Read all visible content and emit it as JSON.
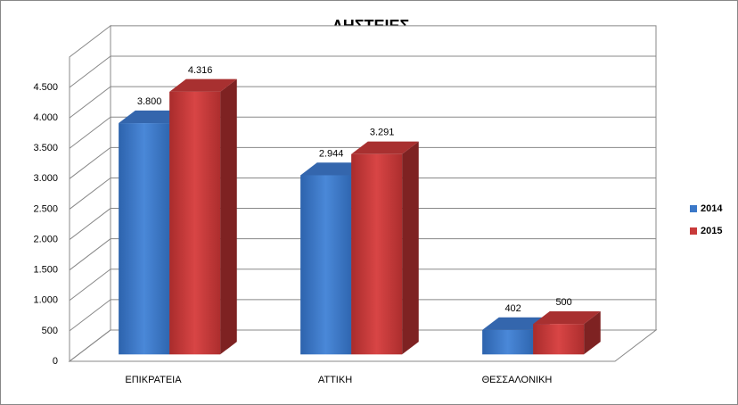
{
  "chart_data": {
    "type": "bar3d",
    "title": "ΛΗΣΤΕΙΕΣ",
    "categories": [
      "ΕΠΙΚΡΑΤΕΙΑ",
      "ΑΤΤΙΚΗ",
      "ΘΕΣΣΑΛΟΝΙΚΗ"
    ],
    "series": [
      {
        "name": "2014",
        "color": "#3b78c8",
        "values": [
          3800,
          2944,
          402
        ],
        "value_labels": [
          "3.800",
          "2.944",
          "402"
        ]
      },
      {
        "name": "2015",
        "color": "#c83a3a",
        "values": [
          4316,
          3291,
          500
        ],
        "value_labels": [
          "4.316",
          "3.291",
          "500"
        ]
      }
    ],
    "ylim": [
      0,
      5000
    ],
    "yticks": [
      0,
      500,
      {
        "value": 1000,
        "label": "1.000"
      },
      {
        "value": 1500,
        "label": "1.500"
      },
      {
        "value": 2000,
        "label": "2.000"
      },
      {
        "value": 2500,
        "label": "2.500"
      },
      {
        "value": 3000,
        "label": "3.000"
      },
      {
        "value": 3500,
        "label": "3.500"
      },
      {
        "value": 4000,
        "label": "4.000"
      },
      {
        "value": 4500,
        "label": "4.500"
      }
    ],
    "grid": true,
    "legend": "right"
  }
}
